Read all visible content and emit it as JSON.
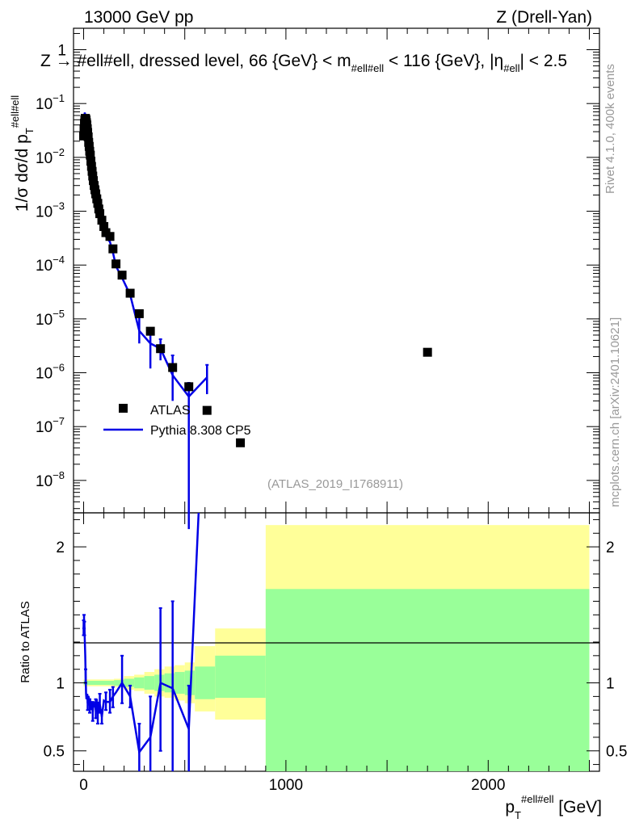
{
  "header": {
    "left": "13000 GeV pp",
    "right": "Z (Drell-Yan)",
    "plot_title": "Z → #ell#ell, dressed level, 66 {GeV} < m",
    "plot_title_sub": "#ell#ell",
    "plot_title_mid": " < 116 {GeV}, |η",
    "plot_title_sub2": "#ell",
    "plot_title_end": "| < 2.5"
  },
  "side_labels": {
    "rivet": "Rivet 4.1.0,  400k events",
    "mcplots": "mcplots.cern.ch [arXiv:2401.10621]"
  },
  "watermark": "(ATLAS_2019_I1768911)",
  "legend": {
    "data_label": "ATLAS",
    "mc_label": "Pythia 8.308 CP5",
    "mc_color": "#0000e6"
  },
  "colors": {
    "data": "#000000",
    "mc": "#0000e6",
    "band_inner": "#99ff99",
    "band_outer": "#ffff99"
  },
  "chart_data": [
    {
      "type": "scatter",
      "panel": "main",
      "ylabel_main": "1/σ dσ/d p",
      "ylabel_sub": "T",
      "ylabel_sup": "#ell#ell",
      "yscale": "log",
      "ylim": [
        2.5e-09,
        2.5
      ],
      "xlim": [
        -50,
        2550
      ],
      "yticks": [
        {
          "v": 1e-08,
          "label": "10",
          "exp": "−8"
        },
        {
          "v": 1e-07,
          "label": "10",
          "exp": "−7"
        },
        {
          "v": 1e-06,
          "label": "10",
          "exp": "−6"
        },
        {
          "v": 1e-05,
          "label": "10",
          "exp": "−5"
        },
        {
          "v": 0.0001,
          "label": "10",
          "exp": "−4"
        },
        {
          "v": 0.001,
          "label": "10",
          "exp": "−3"
        },
        {
          "v": 0.01,
          "label": "10",
          "exp": "−2"
        },
        {
          "v": 0.1,
          "label": "10",
          "exp": "−1"
        },
        {
          "v": 1,
          "label": "1",
          "exp": ""
        }
      ],
      "series": [
        {
          "name": "ATLAS",
          "points": [
            [
              0,
              0.025
            ],
            [
              2,
              0.034
            ],
            [
              4,
              0.043
            ],
            [
              6,
              0.05
            ],
            [
              8,
              0.053
            ],
            [
              10,
              0.052
            ],
            [
              12,
              0.049
            ],
            [
              14,
              0.044
            ],
            [
              16,
              0.04
            ],
            [
              18,
              0.034
            ],
            [
              20,
              0.029
            ],
            [
              22.5,
              0.024
            ],
            [
              25,
              0.019
            ],
            [
              27.5,
              0.016
            ],
            [
              30,
              0.013
            ],
            [
              33,
              0.011
            ],
            [
              36,
              0.0085
            ],
            [
              39,
              0.0068
            ],
            [
              42,
              0.0055
            ],
            [
              45,
              0.0045
            ],
            [
              48,
              0.0037
            ],
            [
              52,
              0.003
            ],
            [
              56,
              0.0025
            ],
            [
              60,
              0.0021
            ],
            [
              65,
              0.0017
            ],
            [
              70,
              0.0014
            ],
            [
              75,
              0.0011
            ],
            [
              80,
              0.0009
            ],
            [
              90,
              0.00068
            ],
            [
              100,
              0.00052
            ],
            [
              110,
              0.0004
            ],
            [
              130,
              0.00034
            ],
            [
              145,
              0.0002
            ],
            [
              160,
              0.000105
            ],
            [
              190,
              6.5e-05
            ],
            [
              230,
              3e-05
            ],
            [
              275,
              1.25e-05
            ],
            [
              330,
              5.9e-06
            ],
            [
              380,
              2.8e-06
            ],
            [
              440,
              1.25e-06
            ],
            [
              520,
              5.5e-07
            ],
            [
              610,
              2e-07
            ],
            [
              775,
              5e-08
            ],
            [
              1700,
              2.4e-06
            ]
          ]
        },
        {
          "name": "Pythia 8.308 CP5",
          "points": [
            [
              0,
              0.038
            ],
            [
              2,
              0.05
            ],
            [
              4,
              0.062
            ],
            [
              6,
              0.068
            ],
            [
              8,
              0.06
            ],
            [
              10,
              0.055
            ],
            [
              12,
              0.05
            ],
            [
              14,
              0.044
            ],
            [
              16,
              0.038
            ],
            [
              18,
              0.031
            ],
            [
              20,
              0.027
            ],
            [
              22.5,
              0.022
            ],
            [
              25,
              0.017
            ],
            [
              27.5,
              0.014
            ],
            [
              30,
              0.011
            ],
            [
              33,
              0.0095
            ],
            [
              36,
              0.0072
            ],
            [
              39,
              0.0058
            ],
            [
              42,
              0.0045
            ],
            [
              45,
              0.0038
            ],
            [
              48,
              0.0031
            ],
            [
              52,
              0.0025
            ],
            [
              56,
              0.0021
            ],
            [
              60,
              0.0017
            ],
            [
              65,
              0.0014
            ],
            [
              70,
              0.00115
            ],
            [
              75,
              0.00094
            ],
            [
              80,
              0.00076
            ],
            [
              90,
              0.00058
            ],
            [
              100,
              0.00044
            ],
            [
              110,
              0.00034
            ],
            [
              130,
              0.00027
            ],
            [
              145,
              0.00017
            ],
            [
              160,
              9.5e-05
            ],
            [
              190,
              5.8e-05
            ],
            [
              230,
              2.8e-05
            ],
            [
              275,
              6e-06
            ],
            [
              330,
              3.5e-06
            ],
            [
              380,
              2.8e-06
            ],
            [
              440,
              9e-07
            ],
            [
              520,
              3.6e-07
            ],
            [
              610,
              8.2e-07
            ]
          ],
          "err_high": [
            [
              275,
              1.25e-05
            ],
            [
              330,
              6e-06
            ],
            [
              380,
              4.2e-06
            ],
            [
              440,
              2.1e-06
            ],
            [
              520,
              6.5e-07
            ],
            [
              610,
              1.4e-06
            ]
          ],
          "err_low": [
            [
              275,
              3.5e-06
            ],
            [
              330,
              1.2e-06
            ],
            [
              380,
              1.7e-06
            ],
            [
              440,
              3e-07
            ],
            [
              520,
              1e-10
            ],
            [
              610,
              4e-07
            ]
          ]
        }
      ]
    },
    {
      "type": "line",
      "panel": "ratio",
      "ylabel": "Ratio to ATLAS",
      "xlabel": "p",
      "xlabel_sub": "T",
      "xlabel_sup": "#ell#ell",
      "xlabel_unit": " [GeV]",
      "ylim": [
        0.35,
        2.25
      ],
      "xlim": [
        -50,
        2550
      ],
      "xticks": [
        0,
        1000,
        2000
      ],
      "xtick_labels": [
        "0",
        "1000",
        "2000"
      ],
      "yticks": [
        0.5,
        1,
        2
      ],
      "ytick_labels": [
        "0.5",
        "1",
        "2"
      ],
      "bands": [
        {
          "x0": 0,
          "x1": 150,
          "inner": [
            0.985,
            1.015
          ],
          "outer": [
            0.975,
            1.025
          ]
        },
        {
          "x0": 150,
          "x1": 200,
          "inner": [
            0.98,
            1.02
          ],
          "outer": [
            0.97,
            1.03
          ]
        },
        {
          "x0": 200,
          "x1": 250,
          "inner": [
            0.97,
            1.03
          ],
          "outer": [
            0.95,
            1.05
          ]
        },
        {
          "x0": 250,
          "x1": 300,
          "inner": [
            0.96,
            1.04
          ],
          "outer": [
            0.94,
            1.06
          ]
        },
        {
          "x0": 300,
          "x1": 350,
          "inner": [
            0.95,
            1.05
          ],
          "outer": [
            0.92,
            1.08
          ]
        },
        {
          "x0": 350,
          "x1": 400,
          "inner": [
            0.94,
            1.06
          ],
          "outer": [
            0.9,
            1.1
          ]
        },
        {
          "x0": 400,
          "x1": 450,
          "inner": [
            0.93,
            1.07
          ],
          "outer": [
            0.89,
            1.12
          ]
        },
        {
          "x0": 450,
          "x1": 500,
          "inner": [
            0.92,
            1.08
          ],
          "outer": [
            0.87,
            1.13
          ]
        },
        {
          "x0": 500,
          "x1": 550,
          "inner": [
            0.91,
            1.09
          ],
          "outer": [
            0.85,
            1.15
          ]
        },
        {
          "x0": 550,
          "x1": 650,
          "inner": [
            0.88,
            1.12
          ],
          "outer": [
            0.79,
            1.27
          ]
        },
        {
          "x0": 650,
          "x1": 900,
          "inner": [
            0.89,
            1.2
          ],
          "outer": [
            0.73,
            1.4
          ]
        },
        {
          "x0": 900,
          "x1": 2500,
          "inner": [
            0.35,
            1.69
          ],
          "outer": [
            0.35,
            2.16
          ]
        }
      ],
      "series": [
        {
          "name": "Pythia 8.308 CP5",
          "points": [
            [
              0,
              1.4
            ],
            [
              2,
              1.45
            ],
            [
              4,
              1.4
            ],
            [
              6,
              1.3
            ],
            [
              8,
              1.2
            ],
            [
              10,
              1.05
            ],
            [
              12,
              0.92
            ],
            [
              14,
              0.88
            ],
            [
              16,
              0.9
            ],
            [
              18,
              0.92
            ],
            [
              20,
              0.85
            ],
            [
              22.5,
              0.88
            ],
            [
              25,
              0.9
            ],
            [
              27.5,
              0.86
            ],
            [
              30,
              0.83
            ],
            [
              33,
              0.87
            ],
            [
              36,
              0.85
            ],
            [
              39,
              0.8
            ],
            [
              42,
              0.85
            ],
            [
              45,
              0.78
            ],
            [
              48,
              0.84
            ],
            [
              52,
              0.82
            ],
            [
              56,
              0.86
            ],
            [
              60,
              0.8
            ],
            [
              65,
              0.88
            ],
            [
              70,
              0.77
            ],
            [
              75,
              0.86
            ],
            [
              80,
              0.84
            ],
            [
              90,
              0.75
            ],
            [
              100,
              0.87
            ],
            [
              110,
              0.86
            ],
            [
              130,
              0.86
            ],
            [
              145,
              0.9
            ],
            [
              160,
              0.93
            ],
            [
              190,
              1.0
            ],
            [
              230,
              0.9
            ],
            [
              275,
              0.49
            ],
            [
              330,
              0.6
            ],
            [
              380,
              1.0
            ],
            [
              440,
              0.96
            ],
            [
              520,
              0.66
            ],
            [
              570,
              2.3
            ]
          ],
          "errors": [
            [
              0,
              1.35,
              1.46
            ],
            [
              2,
              1.4,
              1.5
            ],
            [
              4,
              1.35,
              1.45
            ],
            [
              10,
              1.0,
              1.1
            ],
            [
              20,
              0.8,
              0.9
            ],
            [
              30,
              0.78,
              0.88
            ],
            [
              45,
              0.72,
              0.86
            ],
            [
              60,
              0.74,
              0.88
            ],
            [
              70,
              0.7,
              0.84
            ],
            [
              80,
              0.78,
              0.92
            ],
            [
              90,
              0.7,
              0.8
            ],
            [
              110,
              0.8,
              0.93
            ],
            [
              130,
              0.78,
              0.95
            ],
            [
              145,
              0.82,
              0.97
            ],
            [
              190,
              0.85,
              1.2
            ],
            [
              230,
              0.82,
              0.98
            ],
            [
              275,
              0.35,
              0.7
            ],
            [
              330,
              0.35,
              0.9
            ],
            [
              380,
              0.5,
              1.55
            ],
            [
              440,
              0.35,
              1.6
            ],
            [
              520,
              0.35,
              0.98
            ]
          ]
        }
      ]
    }
  ]
}
